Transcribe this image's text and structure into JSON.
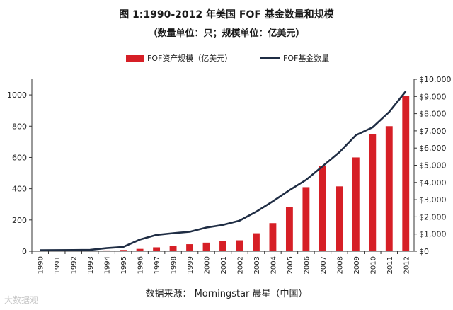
{
  "title_line1": "图 1:1990-2012 年美国 FOF 基金数量和规模",
  "title_line2": "（数量单位：只；规模单位：亿美元）",
  "source": "数据来源：    Morningstar  晨星（中国）",
  "watermark": "大数据观",
  "colors": {
    "bar": "#d61f26",
    "line": "#1f2d44",
    "axis": "#333333"
  },
  "chart_data": {
    "type": "bar+line",
    "categories": [
      "1990",
      "1991",
      "1992",
      "1993",
      "1994",
      "1995",
      "1996",
      "1997",
      "1998",
      "1999",
      "2000",
      "2001",
      "2002",
      "2003",
      "2004",
      "2005",
      "2006",
      "2007",
      "2008",
      "2009",
      "2010",
      "2011",
      "2012"
    ],
    "series": [
      {
        "name": "FOF资产规模（亿美元）",
        "type": "bar",
        "axis": "left",
        "values": [
          0,
          1,
          2,
          3,
          5,
          8,
          15,
          25,
          35,
          45,
          55,
          65,
          70,
          115,
          180,
          285,
          410,
          545,
          415,
          600,
          750,
          800,
          995
        ]
      },
      {
        "name": "FOF基金数量",
        "type": "line",
        "axis": "right",
        "values": [
          60,
          65,
          70,
          80,
          180,
          250,
          680,
          950,
          1050,
          1130,
          1380,
          1530,
          1780,
          2300,
          2900,
          3550,
          4150,
          4950,
          5750,
          6750,
          7200,
          8100,
          9300
        ]
      }
    ],
    "y_left": {
      "ticks": [
        0,
        200,
        400,
        600,
        800,
        1000
      ],
      "tick_labels": [
        "0",
        "200",
        "400",
        "600",
        "800",
        "1000"
      ],
      "lim": [
        0,
        1100
      ]
    },
    "y_right": {
      "ticks": [
        0,
        1000,
        2000,
        3000,
        4000,
        5000,
        6000,
        7000,
        8000,
        9000,
        10000
      ],
      "tick_labels": [
        "$0",
        "$1,000",
        "$2,000",
        "$3,000",
        "$4,000",
        "$5,000",
        "$6,000",
        "$7,000",
        "$8,000",
        "$9,000",
        "$10,000"
      ],
      "lim": [
        0,
        10000
      ]
    },
    "legend": "top-center",
    "grid": false
  }
}
